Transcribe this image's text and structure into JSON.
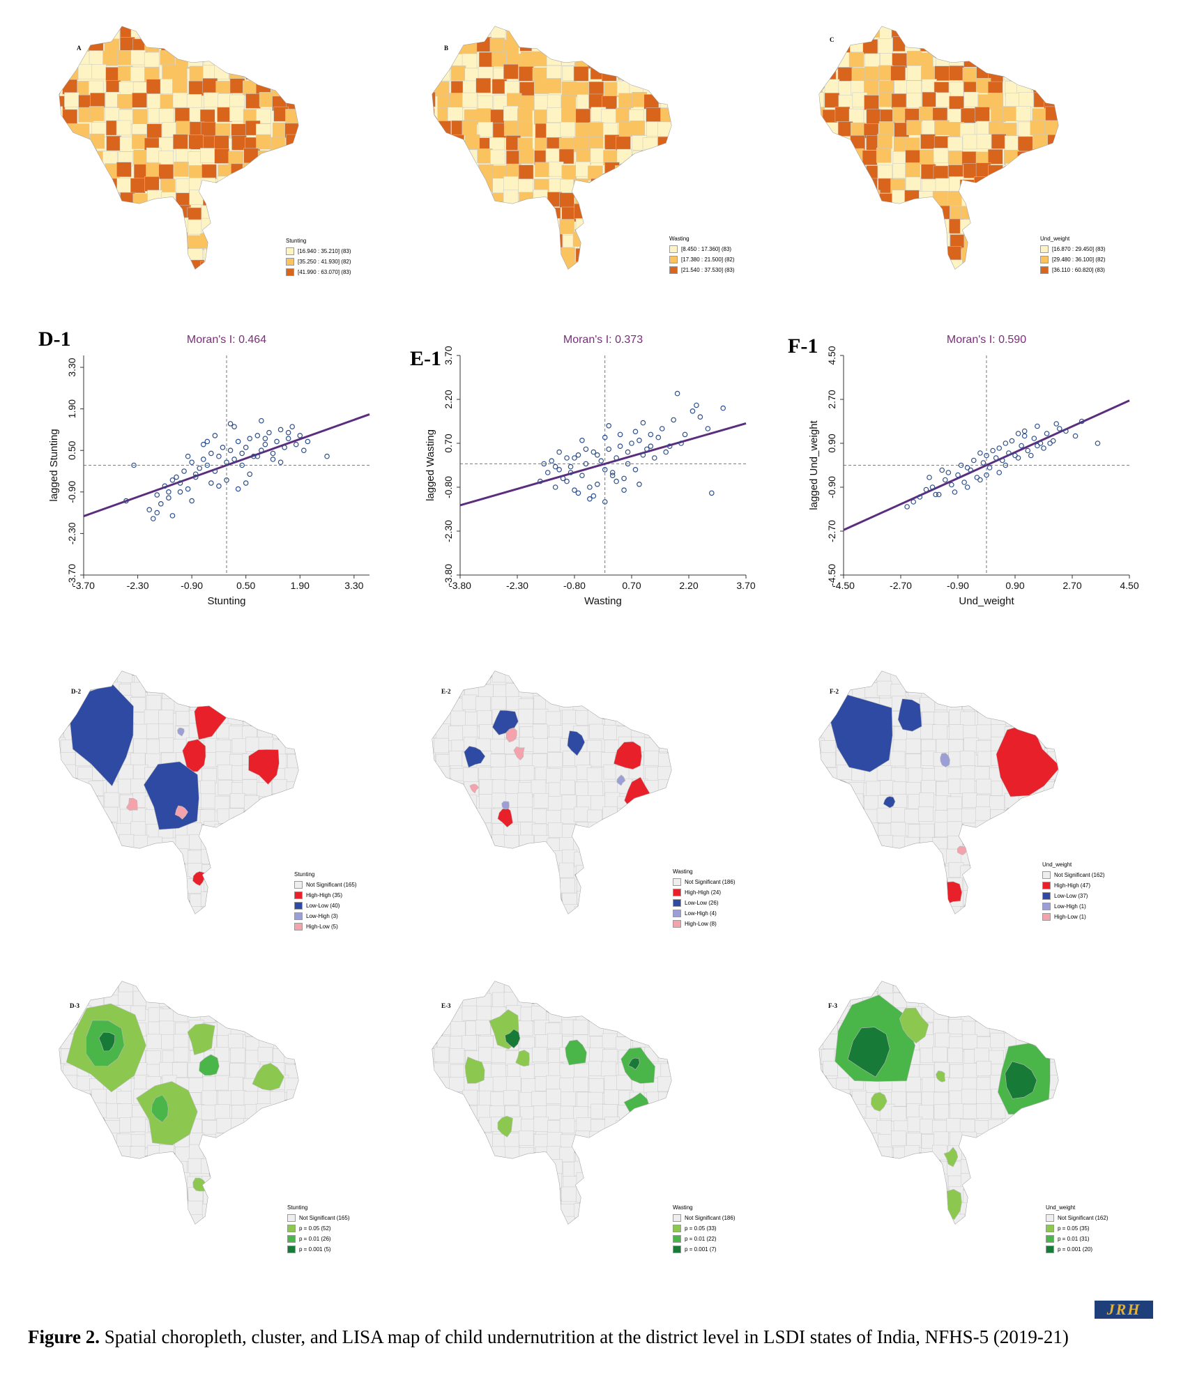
{
  "maps": [
    {
      "id": "A",
      "letter": "A",
      "kind": "choro",
      "legend_title": "Stunting",
      "legend": [
        {
          "label": "[16.940 : 35.210] (83)",
          "color": "#fdf3c3"
        },
        {
          "label": "[35.250 : 41.930] (82)",
          "color": "#fbc35f"
        },
        {
          "label": "[41.990 : 63.070] (83)",
          "color": "#d9641c"
        }
      ]
    },
    {
      "id": "B",
      "letter": "B",
      "kind": "choro",
      "legend_title": "Wasting",
      "legend": [
        {
          "label": "[8.450 : 17.360] (83)",
          "color": "#fdf3c3"
        },
        {
          "label": "[17.380 : 21.500] (82)",
          "color": "#fbc35f"
        },
        {
          "label": "[21.540 : 37.530] (83)",
          "color": "#d9641c"
        }
      ]
    },
    {
      "id": "C",
      "letter": "C",
      "kind": "choro",
      "legend_title": "Und_weight",
      "legend": [
        {
          "label": "[16.870 : 29.450] (83)",
          "color": "#fdf3c3"
        },
        {
          "label": "[29.480 : 36.100] (82)",
          "color": "#fbc35f"
        },
        {
          "label": "[36.110 : 60.820] (83)",
          "color": "#d9641c"
        }
      ]
    },
    {
      "id": "D2",
      "letter": "D-2",
      "kind": "cluster",
      "legend_title": "Stunting",
      "legend": [
        {
          "label": "Not Significant (165)",
          "color": "#eeeeee"
        },
        {
          "label": "High-High (35)",
          "color": "#e8202a"
        },
        {
          "label": "Low-Low (40)",
          "color": "#2f4aa3"
        },
        {
          "label": "Low-High (3)",
          "color": "#9b9fd6"
        },
        {
          "label": "High-Low (5)",
          "color": "#f4a3ad"
        }
      ]
    },
    {
      "id": "E2",
      "letter": "E-2",
      "kind": "cluster",
      "legend_title": "Wasting",
      "legend": [
        {
          "label": "Not Significant (186)",
          "color": "#eeeeee"
        },
        {
          "label": "High-High (24)",
          "color": "#e8202a"
        },
        {
          "label": "Low-Low (26)",
          "color": "#2f4aa3"
        },
        {
          "label": "Low-High (4)",
          "color": "#9b9fd6"
        },
        {
          "label": "High-Low (8)",
          "color": "#f4a3ad"
        }
      ]
    },
    {
      "id": "F2",
      "letter": "F-2",
      "kind": "cluster",
      "legend_title": "Und_weight",
      "legend": [
        {
          "label": "Not Significant (162)",
          "color": "#eeeeee"
        },
        {
          "label": "High-High (47)",
          "color": "#e8202a"
        },
        {
          "label": "Low-Low (37)",
          "color": "#2f4aa3"
        },
        {
          "label": "Low-High (1)",
          "color": "#9b9fd6"
        },
        {
          "label": "High-Low (1)",
          "color": "#f4a3ad"
        }
      ]
    },
    {
      "id": "D3",
      "letter": "D-3",
      "kind": "sig",
      "legend_title": "Stunting",
      "legend": [
        {
          "label": "Not Significant (165)",
          "color": "#eeeeee"
        },
        {
          "label": "p = 0.05 (52)",
          "color": "#8cc850"
        },
        {
          "label": "p = 0.01 (26)",
          "color": "#4ab548"
        },
        {
          "label": "p = 0.001 (5)",
          "color": "#177a36"
        }
      ]
    },
    {
      "id": "E3",
      "letter": "E-3",
      "kind": "sig",
      "legend_title": "Wasting",
      "legend": [
        {
          "label": "Not Significant (186)",
          "color": "#eeeeee"
        },
        {
          "label": "p = 0.05 (33)",
          "color": "#8cc850"
        },
        {
          "label": "p = 0.01 (22)",
          "color": "#4ab548"
        },
        {
          "label": "p = 0.001 (7)",
          "color": "#177a36"
        }
      ]
    },
    {
      "id": "F3",
      "letter": "F-3",
      "kind": "sig",
      "legend_title": "Und_weight",
      "legend": [
        {
          "label": "Not Significant (162)",
          "color": "#eeeeee"
        },
        {
          "label": "p = 0.05 (35)",
          "color": "#8cc850"
        },
        {
          "label": "p = 0.01 (31)",
          "color": "#4ab548"
        },
        {
          "label": "p = 0.001 (20)",
          "color": "#177a36"
        }
      ]
    }
  ],
  "scatter_labels": {
    "D1": "D-1",
    "E1": "E-1",
    "F1": "F-1"
  },
  "chart_data": [
    {
      "type": "scatter",
      "id": "D1",
      "title": "Moran's I: 0.464",
      "slope": 0.464,
      "xlabel": "Stunting",
      "ylabel": "lagged Stunting",
      "xlim": [
        -3.7,
        3.7
      ],
      "ylim": [
        -3.7,
        3.7
      ],
      "xticks": [
        "-3.70",
        "-2.30",
        "-0.90",
        "0.50",
        "1.90",
        "3.30"
      ],
      "yticks": [
        "-3.70",
        "-2.30",
        "-0.90",
        "0.50",
        "1.90",
        "3.30"
      ],
      "x": [
        -2.6,
        -2.4,
        -2.0,
        -1.9,
        -1.8,
        -1.7,
        -1.6,
        -1.5,
        -1.4,
        -1.3,
        -1.2,
        -1.1,
        -1.0,
        -0.9,
        -0.8,
        -0.7,
        -0.6,
        -0.5,
        -0.4,
        -0.3,
        -0.2,
        -0.1,
        0.0,
        0.1,
        0.2,
        0.3,
        0.4,
        0.5,
        0.6,
        0.7,
        0.8,
        0.9,
        1.0,
        1.1,
        1.2,
        1.3,
        1.4,
        1.5,
        1.6,
        1.7,
        1.8,
        1.9,
        2.0,
        2.1,
        -1.8,
        -1.5,
        -1.2,
        -0.8,
        -0.4,
        0.0,
        0.4,
        0.8,
        1.2,
        1.6,
        -1.0,
        -0.6,
        -0.2,
        0.2,
        0.6,
        1.0,
        1.4,
        -0.3,
        0.3,
        0.9,
        2.6,
        -1.4,
        -0.9,
        -0.5,
        0.1,
        0.5
      ],
      "y": [
        -1.2,
        0.0,
        -1.5,
        -1.8,
        -1.0,
        -1.3,
        -0.7,
        -0.9,
        -0.5,
        -0.4,
        -0.6,
        -0.2,
        -0.8,
        0.1,
        -0.3,
        -0.1,
        0.2,
        0.0,
        0.4,
        -0.2,
        0.3,
        0.6,
        0.1,
        0.5,
        0.2,
        0.8,
        0.4,
        0.6,
        0.9,
        0.3,
        1.0,
        0.5,
        0.7,
        1.1,
        0.4,
        0.8,
        1.2,
        0.6,
        0.9,
        1.3,
        0.7,
        1.0,
        0.5,
        0.8,
        -1.6,
        -1.1,
        -0.9,
        -0.4,
        -0.6,
        -0.5,
        0.0,
        0.3,
        0.2,
        1.1,
        0.3,
        0.7,
        -0.7,
        1.3,
        -0.3,
        0.9,
        0.1,
        1.0,
        -0.8,
        1.5,
        0.3,
        -1.7,
        -1.2,
        0.8,
        1.4,
        -0.6
      ]
    },
    {
      "type": "scatter",
      "id": "E1",
      "title": "Moran's I: 0.373",
      "slope": 0.373,
      "xlabel": "Wasting",
      "ylabel": "lagged Wasting",
      "xlim": [
        -3.8,
        3.7
      ],
      "ylim": [
        -3.8,
        3.7
      ],
      "xticks": [
        "-3.80",
        "-2.30",
        "-0.80",
        "0.70",
        "2.20",
        "3.70"
      ],
      "yticks": [
        "-3.80",
        "-2.30",
        "-0.80",
        "0.70",
        "2.20",
        "3.70"
      ],
      "x": [
        -1.7,
        -1.5,
        -1.4,
        -1.3,
        -1.2,
        -1.1,
        -1.0,
        -0.9,
        -0.8,
        -0.7,
        -0.6,
        -0.5,
        -0.4,
        -0.3,
        -0.2,
        -0.1,
        0.0,
        0.1,
        0.2,
        0.3,
        0.4,
        0.5,
        0.6,
        0.7,
        0.8,
        0.9,
        1.0,
        1.1,
        1.2,
        1.3,
        1.5,
        1.7,
        1.9,
        2.1,
        2.3,
        2.5,
        2.8,
        3.1,
        -1.6,
        -1.0,
        -0.5,
        0.0,
        0.5,
        1.0,
        -1.2,
        -0.7,
        -0.2,
        0.3,
        0.8,
        1.4,
        2.0,
        -0.9,
        -0.4,
        0.1,
        0.6,
        1.6,
        -0.6,
        0.2,
        1.2,
        -1.3,
        -0.3,
        0.4,
        2.7,
        1.8,
        -0.8,
        0.0,
        0.9,
        2.4
      ],
      "y": [
        -0.6,
        -0.3,
        0.1,
        -0.8,
        -0.2,
        -0.5,
        0.2,
        -0.1,
        -0.9,
        0.3,
        -0.4,
        0.0,
        -1.2,
        0.4,
        -0.7,
        0.1,
        -1.3,
        0.5,
        -0.3,
        0.2,
        0.6,
        -0.5,
        0.4,
        0.7,
        -0.2,
        0.8,
        0.3,
        0.5,
        1.0,
        0.2,
        1.2,
        0.6,
        2.4,
        1.0,
        1.8,
        1.6,
        -1.0,
        1.9,
        0.0,
        -0.6,
        0.5,
        0.9,
        -0.9,
        1.4,
        0.4,
        -1.0,
        0.3,
        -0.6,
        1.1,
        0.9,
        0.7,
        -0.3,
        -0.8,
        1.3,
        0.0,
        0.4,
        0.8,
        -0.4,
        0.6,
        -0.1,
        -1.1,
        1.0,
        1.2,
        1.5,
        0.2,
        -0.2,
        -0.7,
        2.0
      ]
    },
    {
      "type": "scatter",
      "id": "F1",
      "title": "Moran's I: 0.590",
      "slope": 0.59,
      "xlabel": "Und_weight",
      "ylabel": "lagged Und_weight",
      "xlim": [
        -4.5,
        4.5
      ],
      "ylim": [
        -4.5,
        4.5
      ],
      "xticks": [
        "-4.50",
        "-2.70",
        "-0.90",
        "0.90",
        "2.70",
        "4.50"
      ],
      "yticks": [
        "-4.50",
        "-2.70",
        "-0.90",
        "0.90",
        "2.70",
        "4.50"
      ],
      "x": [
        -2.5,
        -2.3,
        -2.1,
        -1.9,
        -1.7,
        -1.5,
        -1.3,
        -1.1,
        -0.9,
        -0.7,
        -0.5,
        -0.3,
        -0.1,
        0.1,
        0.3,
        0.5,
        0.7,
        0.9,
        1.1,
        1.3,
        1.5,
        1.7,
        1.9,
        2.1,
        2.3,
        2.5,
        2.8,
        3.5,
        -1.8,
        -1.2,
        -0.6,
        0.0,
        0.6,
        1.2,
        1.8,
        -1.4,
        -0.8,
        -0.2,
        0.4,
        1.0,
        1.6,
        2.2,
        -1.0,
        -0.4,
        0.2,
        0.8,
        1.4,
        2.0,
        -0.6,
        0.0,
        0.6,
        1.2,
        3.0,
        -1.6,
        -0.2,
        0.4,
        1.0,
        1.6
      ],
      "y": [
        -1.7,
        -1.5,
        -1.3,
        -1.0,
        -0.9,
        -1.2,
        -0.6,
        -0.8,
        -0.4,
        -0.7,
        -0.2,
        -0.5,
        0.1,
        -0.1,
        0.3,
        0.2,
        0.5,
        0.4,
        0.8,
        0.6,
        1.1,
        0.9,
        1.3,
        1.0,
        1.5,
        1.4,
        1.2,
        0.9,
        -0.5,
        -0.3,
        -0.9,
        0.4,
        0.0,
        1.2,
        0.7,
        -0.2,
        0.0,
        -0.6,
        0.7,
        0.3,
        1.6,
        1.7,
        -1.1,
        0.2,
        0.6,
        1.0,
        0.4,
        0.9,
        -0.1,
        -0.4,
        0.9,
        1.4,
        1.8,
        -1.2,
        0.5,
        -0.3,
        1.3,
        0.8
      ]
    }
  ],
  "caption": {
    "label": "Figure 2.",
    "text": " Spatial choropleth, cluster, and LISA map of child undernutrition at the district level in LSDI states of India, NFHS-5 (2019-21)"
  },
  "logo": "JRH"
}
